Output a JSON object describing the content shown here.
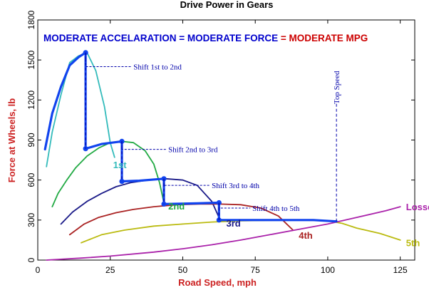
{
  "chart_data": {
    "type": "line",
    "title": "Drive Power in Gears",
    "xlabel": "Road Speed, mph",
    "ylabel": "Force at Wheels, lb",
    "xlim": [
      0,
      130
    ],
    "ylim": [
      0,
      1800
    ],
    "xticks": [
      0,
      25,
      50,
      75,
      100,
      125
    ],
    "yticks": [
      0,
      300,
      600,
      900,
      1200,
      1500,
      1800
    ],
    "grid": false,
    "headline": {
      "part1": "MODERATE ACCELARATION = MODERATE FORCE",
      "part2": " = MODERATE MPG",
      "color1": "#0000cc",
      "color2": "#cc0000"
    },
    "series": [
      {
        "name": "1st",
        "color": "#33bbbb",
        "width": 1.8,
        "points": [
          [
            3,
            700
          ],
          [
            5,
            960
          ],
          [
            8,
            1240
          ],
          [
            11,
            1480
          ],
          [
            14,
            1530
          ],
          [
            17,
            1555
          ],
          [
            20,
            1420
          ],
          [
            23,
            1150
          ],
          [
            25,
            880
          ],
          [
            26.5,
            770
          ]
        ]
      },
      {
        "name": "2nd",
        "color": "#22aa44",
        "width": 1.8,
        "points": [
          [
            5,
            400
          ],
          [
            7,
            500
          ],
          [
            10,
            600
          ],
          [
            13,
            690
          ],
          [
            17,
            780
          ],
          [
            21,
            840
          ],
          [
            25,
            880
          ],
          [
            29,
            890
          ],
          [
            33,
            880
          ],
          [
            37,
            820
          ],
          [
            40,
            720
          ],
          [
            42,
            580
          ],
          [
            43.5,
            430
          ]
        ]
      },
      {
        "name": "3rd",
        "color": "#1a1a88",
        "width": 1.8,
        "points": [
          [
            8,
            270
          ],
          [
            12,
            360
          ],
          [
            17,
            440
          ],
          [
            22,
            500
          ],
          [
            27,
            550
          ],
          [
            32,
            580
          ],
          [
            38,
            600
          ],
          [
            44,
            610
          ],
          [
            50,
            600
          ],
          [
            55,
            560
          ],
          [
            60,
            440
          ],
          [
            62.5,
            320
          ]
        ]
      },
      {
        "name": "4th",
        "color": "#aa2222",
        "width": 1.8,
        "points": [
          [
            11,
            190
          ],
          [
            16,
            270
          ],
          [
            21,
            320
          ],
          [
            27,
            355
          ],
          [
            33,
            380
          ],
          [
            40,
            400
          ],
          [
            48,
            415
          ],
          [
            56,
            420
          ],
          [
            63,
            420
          ],
          [
            70,
            415
          ],
          [
            77,
            390
          ],
          [
            83,
            330
          ],
          [
            88,
            225
          ]
        ]
      },
      {
        "name": "5th",
        "color": "#bbbb11",
        "width": 1.8,
        "points": [
          [
            15,
            130
          ],
          [
            22,
            190
          ],
          [
            30,
            225
          ],
          [
            40,
            255
          ],
          [
            50,
            270
          ],
          [
            60,
            285
          ],
          [
            70,
            295
          ],
          [
            80,
            298
          ],
          [
            90,
            300
          ],
          [
            100,
            295
          ],
          [
            105,
            275
          ],
          [
            110,
            240
          ],
          [
            118,
            200
          ],
          [
            125,
            150
          ]
        ]
      },
      {
        "name": "Losses",
        "color": "#aa22aa",
        "width": 1.8,
        "points": [
          [
            3,
            0
          ],
          [
            15,
            15
          ],
          [
            25,
            30
          ],
          [
            40,
            60
          ],
          [
            50,
            85
          ],
          [
            60,
            115
          ],
          [
            70,
            150
          ],
          [
            80,
            190
          ],
          [
            90,
            230
          ],
          [
            100,
            270
          ],
          [
            110,
            320
          ],
          [
            120,
            370
          ],
          [
            125,
            400
          ]
        ]
      },
      {
        "name": "Shift path",
        "color": "#1144ee",
        "width": 3.2,
        "points": [
          [
            2.5,
            830
          ],
          [
            5,
            1100
          ],
          [
            8,
            1300
          ],
          [
            11,
            1460
          ],
          [
            14,
            1520
          ],
          [
            16.5,
            1555
          ],
          [
            16.5,
            835
          ],
          [
            22,
            870
          ],
          [
            29,
            890
          ],
          [
            29,
            590
          ],
          [
            35,
            595
          ],
          [
            43.5,
            610
          ],
          [
            43.5,
            420
          ],
          [
            55,
            425
          ],
          [
            62.5,
            430
          ],
          [
            62.5,
            300
          ],
          [
            80,
            300
          ],
          [
            95,
            300
          ],
          [
            103,
            290
          ]
        ]
      }
    ],
    "shift_points": [
      [
        16.5,
        1555
      ],
      [
        16.5,
        835
      ],
      [
        29,
        890
      ],
      [
        29,
        590
      ],
      [
        43.5,
        610
      ],
      [
        43.5,
        420
      ],
      [
        62.5,
        430
      ],
      [
        62.5,
        300
      ]
    ],
    "shift_drops": [
      [
        16.5,
        1555,
        835
      ],
      [
        29,
        890,
        590
      ],
      [
        43.5,
        610,
        420
      ],
      [
        62.5,
        430,
        300
      ]
    ],
    "annotations": [
      {
        "text": "Shift 1st to 2nd",
        "x": 16.5,
        "y": 1555,
        "lx": 33,
        "ly": 1450,
        "color": "#0000aa"
      },
      {
        "text": "Shift 2nd to 3rd",
        "x": 29,
        "y": 890,
        "lx": 45,
        "ly": 830,
        "color": "#0000aa"
      },
      {
        "text": "Shift 3rd to 4th",
        "x": 43.5,
        "y": 610,
        "lx": 60,
        "ly": 560,
        "color": "#0000aa"
      },
      {
        "text": "Shift 4th to 5th",
        "x": 62.5,
        "y": 430,
        "lx": 74,
        "ly": 390,
        "color": "#0000aa"
      }
    ],
    "top_speed": {
      "label": "Top Speed",
      "x": 103,
      "from_y": 290,
      "to_y": 1180,
      "color": "#0000aa"
    },
    "curve_labels": [
      {
        "text": "1st",
        "x": 26,
        "y": 690,
        "color": "#33bbbb"
      },
      {
        "text": "2nd",
        "x": 45,
        "y": 380,
        "color": "#22aa44"
      },
      {
        "text": "3rd",
        "x": 65,
        "y": 250,
        "color": "#1a1a88"
      },
      {
        "text": "4th",
        "x": 90,
        "y": 160,
        "color": "#aa2222"
      },
      {
        "text": "5th",
        "x": 127,
        "y": 105,
        "color": "#bbbb11"
      },
      {
        "text": "Losses",
        "x": 127,
        "y": 375,
        "color": "#aa22aa"
      }
    ]
  }
}
